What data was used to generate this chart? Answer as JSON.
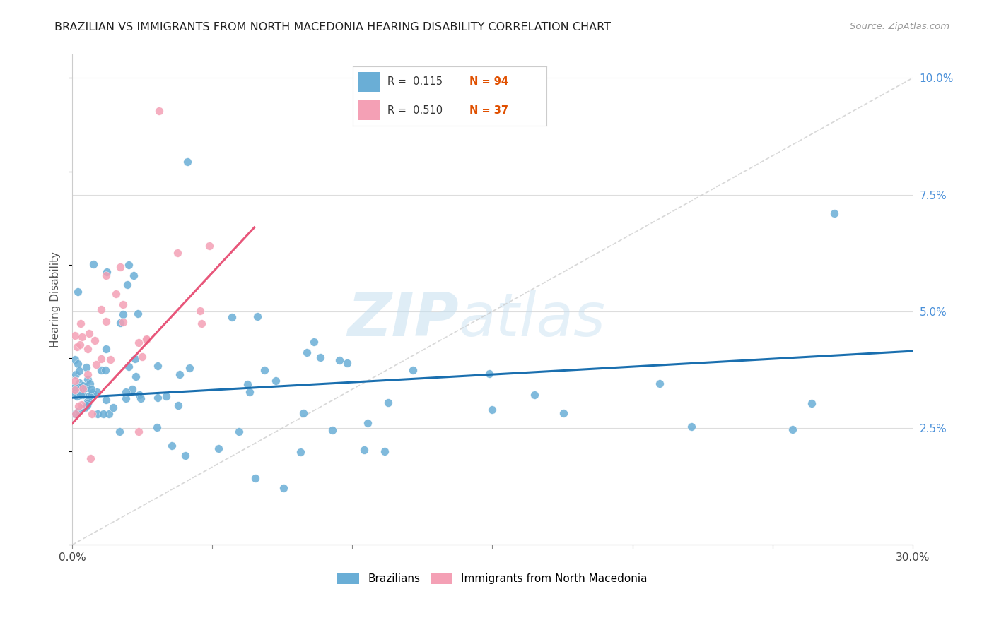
{
  "title": "BRAZILIAN VS IMMIGRANTS FROM NORTH MACEDONIA HEARING DISABILITY CORRELATION CHART",
  "source": "Source: ZipAtlas.com",
  "ylabel": "Hearing Disability",
  "xlim": [
    0.0,
    0.3
  ],
  "ylim": [
    0.0,
    0.105
  ],
  "xtick_positions": [
    0.0,
    0.3
  ],
  "xtick_labels": [
    "0.0%",
    "30.0%"
  ],
  "yticks_right": [
    0.025,
    0.05,
    0.075,
    0.1
  ],
  "ytick_labels_right": [
    "2.5%",
    "5.0%",
    "7.5%",
    "10.0%"
  ],
  "blue_color": "#6aaed6",
  "pink_color": "#f4a0b5",
  "blue_line_color": "#1a6faf",
  "pink_line_color": "#e8567a",
  "diag_color": "#c8c8c8",
  "R1": 0.115,
  "N1": 94,
  "R2": 0.51,
  "N2": 37,
  "watermark_zip": "ZIP",
  "watermark_atlas": "atlas",
  "legend_label1": "Brazilians",
  "legend_label2": "Immigrants from North Macedonia",
  "blue_line_x": [
    0.0,
    0.3
  ],
  "blue_line_y": [
    0.0315,
    0.0415
  ],
  "pink_line_x": [
    0.0,
    0.065
  ],
  "pink_line_y": [
    0.026,
    0.068
  ]
}
